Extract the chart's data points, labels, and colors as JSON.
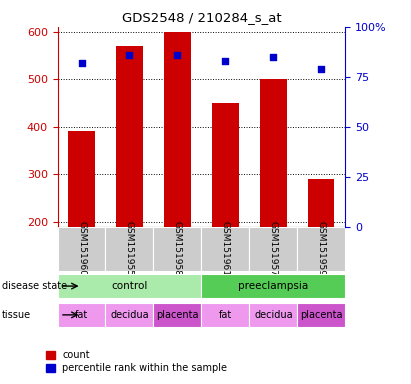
{
  "title": "GDS2548 / 210284_s_at",
  "samples": [
    "GSM151960",
    "GSM151955",
    "GSM151958",
    "GSM151961",
    "GSM151957",
    "GSM151959"
  ],
  "counts": [
    390,
    570,
    600,
    450,
    500,
    290
  ],
  "percentiles": [
    82,
    86,
    86,
    83,
    85,
    79
  ],
  "ymin": 190,
  "ymax": 610,
  "yticks": [
    200,
    300,
    400,
    500,
    600
  ],
  "bar_color": "#cc0000",
  "pct_color": "#0000cc",
  "bar_bottom": 190,
  "disease_state": [
    {
      "label": "control",
      "start": 0,
      "end": 3,
      "color": "#aaeaaa"
    },
    {
      "label": "preeclampsia",
      "start": 3,
      "end": 6,
      "color": "#55cc55"
    }
  ],
  "tissue": [
    {
      "label": "fat",
      "start": 0,
      "end": 1,
      "color": "#ee99ee"
    },
    {
      "label": "decidua",
      "start": 1,
      "end": 2,
      "color": "#ee99ee"
    },
    {
      "label": "placenta",
      "start": 2,
      "end": 3,
      "color": "#cc55cc"
    },
    {
      "label": "fat",
      "start": 3,
      "end": 4,
      "color": "#ee99ee"
    },
    {
      "label": "decidua",
      "start": 4,
      "end": 5,
      "color": "#ee99ee"
    },
    {
      "label": "placenta",
      "start": 5,
      "end": 6,
      "color": "#cc55cc"
    }
  ],
  "left_axis_color": "#cc0000",
  "right_axis_color": "#0000cc",
  "right_yticks": [
    0,
    25,
    50,
    75,
    100
  ],
  "right_yticklabels": [
    "0",
    "25",
    "50",
    "75",
    "100%"
  ]
}
